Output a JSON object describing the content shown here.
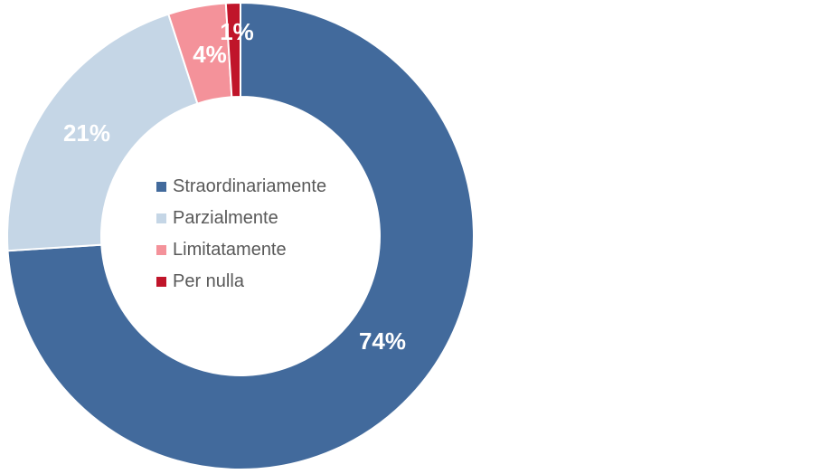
{
  "chart_data": {
    "type": "pie",
    "variant": "donut",
    "categories": [
      "Straordinariamente",
      "Parzialmente",
      "Limitatamente",
      "Per nulla"
    ],
    "values": [
      74,
      21,
      4,
      1
    ],
    "data_labels": [
      "74%",
      "21%",
      "4%",
      "1%"
    ],
    "colors": [
      "#426a9c",
      "#c5d6e6",
      "#f4929a",
      "#c0152a"
    ],
    "label_colors": [
      "#ffffff",
      "#ffffff",
      "#ffffff",
      "#ffffff"
    ],
    "legend_position": "center"
  }
}
